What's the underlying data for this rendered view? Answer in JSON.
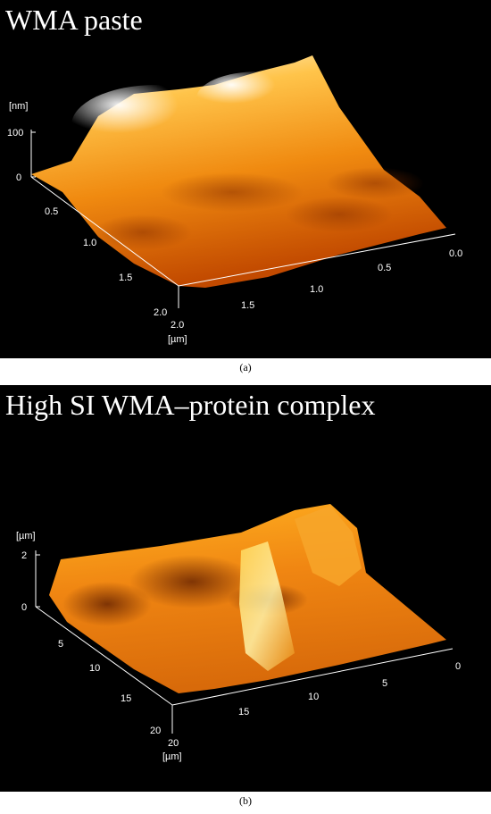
{
  "panels": [
    {
      "id": "a",
      "title": "WMA paste",
      "caption": "(a)",
      "z_axis": {
        "unit": "[nm]",
        "ticks": [
          "100",
          "0"
        ]
      },
      "left_axis": {
        "ticks": [
          "0.5",
          "1.0",
          "1.5",
          "2.0"
        ]
      },
      "right_axis": {
        "ticks": [
          "0.0",
          "0.5",
          "1.0",
          "1.5",
          "2.0"
        ]
      },
      "xy_unit": "[µm]"
    },
    {
      "id": "b",
      "title": "High SI WMA–protein complex",
      "caption": "(b)",
      "z_axis": {
        "unit": "[µm]",
        "ticks": [
          "2",
          "0"
        ]
      },
      "left_axis": {
        "ticks": [
          "5",
          "10",
          "15",
          "20"
        ]
      },
      "right_axis": {
        "ticks": [
          "0",
          "5",
          "10",
          "15",
          "20"
        ]
      },
      "xy_unit": "[µm]"
    }
  ],
  "colors": {
    "background": "#000000",
    "surface_light": "#fff6d8",
    "surface_mid": "#f29a12",
    "surface_dark": "#7a2a00"
  }
}
